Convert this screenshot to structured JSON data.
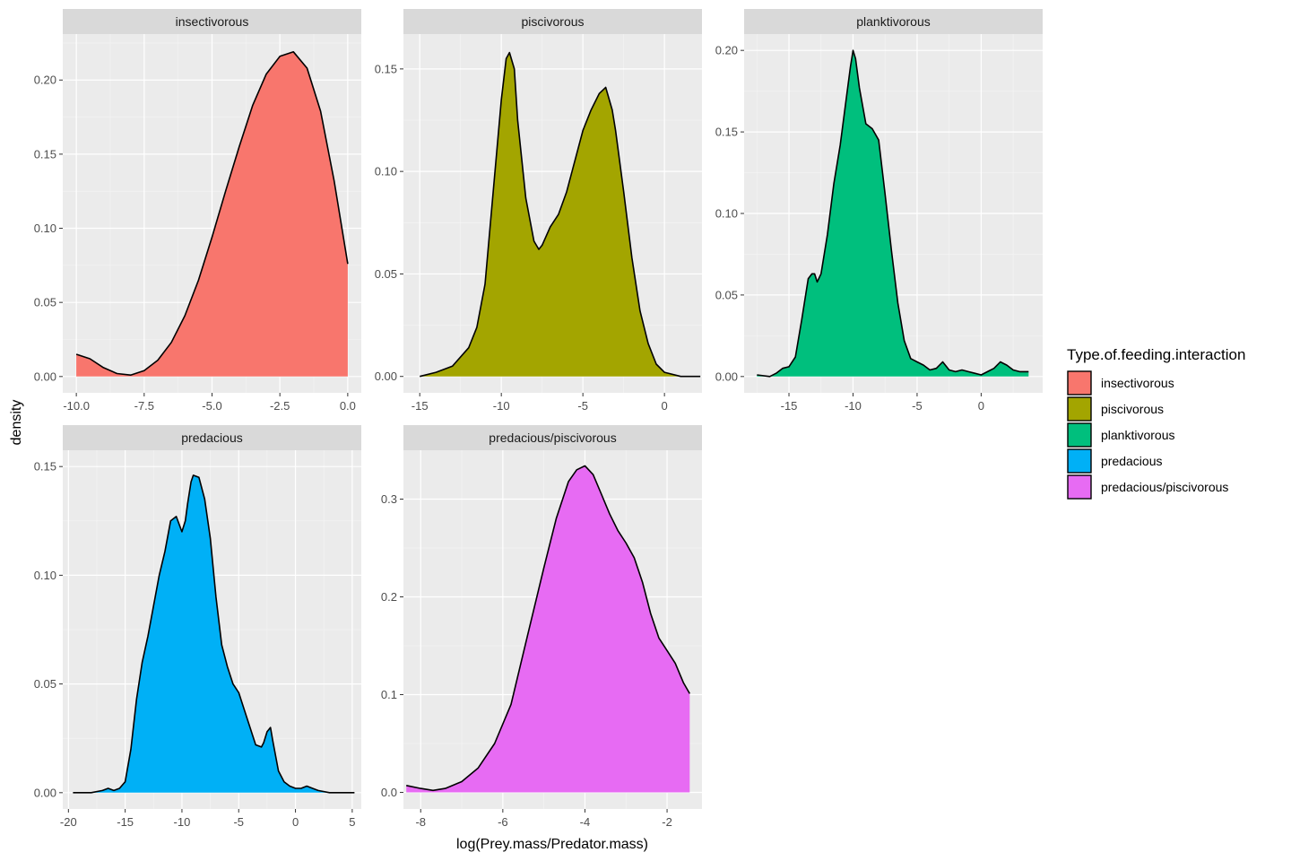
{
  "chart_data": {
    "type": "area",
    "subtype": "faceted-density",
    "xlabel": "log(Prey.mass/Predator.mass)",
    "ylabel": "density",
    "legend": {
      "title": "Type.of.feeding.interaction",
      "position": "right",
      "entries": [
        {
          "name": "insectivorous",
          "color": "#F8766D"
        },
        {
          "name": "piscivorous",
          "color": "#A3A500"
        },
        {
          "name": "planktivorous",
          "color": "#00BF7D"
        },
        {
          "name": "predacious",
          "color": "#00B0F6"
        },
        {
          "name": "predacious/piscivorous",
          "color": "#E76BF3"
        }
      ]
    },
    "panels": [
      {
        "strip": "insectivorous",
        "color": "#F8766D",
        "xlim": [
          -10.5,
          0.5
        ],
        "ylim": [
          -0.011,
          0.231
        ],
        "xticks": [
          -10,
          -7.5,
          -5,
          -2.5,
          0
        ],
        "xtick_labels": [
          "-10.0",
          "-7.5",
          "-5.0",
          "-2.5",
          "0.0"
        ],
        "yticks": [
          0,
          0.05,
          0.1,
          0.15,
          0.2
        ],
        "ytick_labels": [
          "0.00",
          "0.05",
          "0.10",
          "0.15",
          "0.20"
        ],
        "x": [
          -10,
          -9.5,
          -9,
          -8.5,
          -8,
          -7.5,
          -7,
          -6.5,
          -6,
          -5.5,
          -5,
          -4.5,
          -4,
          -3.5,
          -3,
          -2.5,
          -2,
          -1.5,
          -1,
          -0.5,
          0
        ],
        "y": [
          0.015,
          0.012,
          0.006,
          0.002,
          0.001,
          0.004,
          0.011,
          0.023,
          0.041,
          0.065,
          0.094,
          0.125,
          0.155,
          0.183,
          0.204,
          0.216,
          0.219,
          0.208,
          0.179,
          0.132,
          0.076
        ]
      },
      {
        "strip": "piscivorous",
        "color": "#A3A500",
        "xlim": [
          -16,
          2.3
        ],
        "ylim": [
          -0.008,
          0.167
        ],
        "xticks": [
          -15,
          -10,
          -5,
          0
        ],
        "xtick_labels": [
          "-15",
          "-10",
          "-5",
          "0"
        ],
        "yticks": [
          0,
          0.05,
          0.1,
          0.15
        ],
        "ytick_labels": [
          "0.00",
          "0.05",
          "0.10",
          "0.15"
        ],
        "x": [
          -15,
          -14,
          -13,
          -12,
          -11.5,
          -11,
          -10.5,
          -10,
          -9.7,
          -9.5,
          -9.2,
          -9,
          -8.5,
          -8,
          -7.7,
          -7.5,
          -7,
          -6.5,
          -6,
          -5.5,
          -5,
          -4.5,
          -4,
          -3.6,
          -3.2,
          -3,
          -2.5,
          -2,
          -1.5,
          -1,
          -0.5,
          0,
          1,
          2.2
        ],
        "y": [
          0,
          0.002,
          0.005,
          0.014,
          0.024,
          0.045,
          0.09,
          0.135,
          0.155,
          0.158,
          0.15,
          0.125,
          0.087,
          0.066,
          0.062,
          0.064,
          0.073,
          0.079,
          0.09,
          0.105,
          0.12,
          0.13,
          0.138,
          0.141,
          0.13,
          0.12,
          0.09,
          0.058,
          0.032,
          0.016,
          0.006,
          0.002,
          0,
          0
        ]
      },
      {
        "strip": "planktivorous",
        "color": "#00BF7D",
        "xlim": [
          -18.5,
          4.8
        ],
        "ylim": [
          -0.01,
          0.21
        ],
        "xticks": [
          -15,
          -10,
          -5,
          0
        ],
        "xtick_labels": [
          "-15",
          "-10",
          "-5",
          "0"
        ],
        "yticks": [
          0,
          0.05,
          0.1,
          0.15,
          0.2
        ],
        "ytick_labels": [
          "0.00",
          "0.05",
          "0.10",
          "0.15",
          "0.20"
        ],
        "x": [
          -17.5,
          -16.5,
          -16,
          -15.5,
          -15,
          -14.5,
          -14,
          -13.5,
          -13.2,
          -13,
          -12.8,
          -12.5,
          -12,
          -11.5,
          -11,
          -10.5,
          -10.2,
          -10,
          -9.8,
          -9.5,
          -9,
          -8.5,
          -8,
          -7.5,
          -7,
          -6.5,
          -6,
          -5.5,
          -5,
          -4.5,
          -4,
          -3.5,
          -3,
          -2.5,
          -2,
          -1.5,
          -1,
          -0.5,
          0,
          0.5,
          1,
          1.5,
          2,
          2.5,
          3,
          3.7
        ],
        "y": [
          0.001,
          0,
          0.002,
          0.005,
          0.006,
          0.012,
          0.035,
          0.06,
          0.063,
          0.063,
          0.058,
          0.063,
          0.087,
          0.118,
          0.142,
          0.172,
          0.19,
          0.2,
          0.195,
          0.177,
          0.155,
          0.152,
          0.145,
          0.112,
          0.077,
          0.045,
          0.022,
          0.011,
          0.009,
          0.007,
          0.004,
          0.005,
          0.009,
          0.004,
          0.003,
          0.004,
          0.003,
          0.002,
          0.001,
          0.003,
          0.005,
          0.009,
          0.007,
          0.004,
          0.003,
          0.003
        ]
      },
      {
        "strip": "predacious",
        "color": "#00B0F6",
        "xlim": [
          -20.5,
          5.8
        ],
        "ylim": [
          -0.0075,
          0.1575
        ],
        "xticks": [
          -20,
          -15,
          -10,
          -5,
          0,
          5
        ],
        "xtick_labels": [
          "-20",
          "-15",
          "-10",
          "-5",
          "0",
          "5"
        ],
        "yticks": [
          0,
          0.05,
          0.1,
          0.15
        ],
        "ytick_labels": [
          "0.00",
          "0.05",
          "0.10",
          "0.15"
        ],
        "x": [
          -19.6,
          -18,
          -17,
          -16.5,
          -16,
          -15.5,
          -15,
          -14.5,
          -14,
          -13.5,
          -13,
          -12.5,
          -12,
          -11.5,
          -11,
          -10.5,
          -10,
          -9.7,
          -9.5,
          -9.2,
          -9,
          -8.5,
          -8,
          -7.5,
          -7,
          -6.5,
          -6,
          -5.5,
          -5,
          -4.5,
          -4,
          -3.5,
          -3,
          -2.8,
          -2.5,
          -2.2,
          -2,
          -1.5,
          -1,
          -0.5,
          0,
          0.5,
          1,
          1.5,
          2,
          3,
          5.2
        ],
        "y": [
          0,
          0,
          0.001,
          0.002,
          0.001,
          0.002,
          0.005,
          0.02,
          0.043,
          0.06,
          0.072,
          0.086,
          0.1,
          0.111,
          0.125,
          0.127,
          0.12,
          0.125,
          0.133,
          0.143,
          0.146,
          0.145,
          0.135,
          0.117,
          0.09,
          0.068,
          0.058,
          0.05,
          0.046,
          0.038,
          0.03,
          0.022,
          0.021,
          0.023,
          0.028,
          0.03,
          0.024,
          0.01,
          0.005,
          0.003,
          0.002,
          0.002,
          0.003,
          0.002,
          0.001,
          0,
          0
        ]
      },
      {
        "strip": "predacious/piscivorous",
        "color": "#E76BF3",
        "xlim": [
          -8.42,
          -1.15
        ],
        "ylim": [
          -0.017,
          0.35
        ],
        "xticks": [
          -8,
          -6,
          -4,
          -2
        ],
        "xtick_labels": [
          "-8",
          "-6",
          "-4",
          "-2"
        ],
        "yticks": [
          0,
          0.1,
          0.2,
          0.3
        ],
        "ytick_labels": [
          "0.0",
          "0.1",
          "0.2",
          "0.3"
        ],
        "x": [
          -8.35,
          -8,
          -7.7,
          -7.4,
          -7,
          -6.6,
          -6.2,
          -5.8,
          -5.4,
          -5,
          -4.7,
          -4.4,
          -4.2,
          -4,
          -3.8,
          -3.6,
          -3.4,
          -3.2,
          -3,
          -2.8,
          -2.6,
          -2.4,
          -2.2,
          -2,
          -1.8,
          -1.6,
          -1.45
        ],
        "y": [
          0.007,
          0.004,
          0.002,
          0.004,
          0.011,
          0.025,
          0.05,
          0.09,
          0.16,
          0.23,
          0.28,
          0.318,
          0.33,
          0.334,
          0.325,
          0.305,
          0.285,
          0.268,
          0.255,
          0.24,
          0.215,
          0.183,
          0.158,
          0.145,
          0.132,
          0.112,
          0.101
        ]
      }
    ]
  }
}
